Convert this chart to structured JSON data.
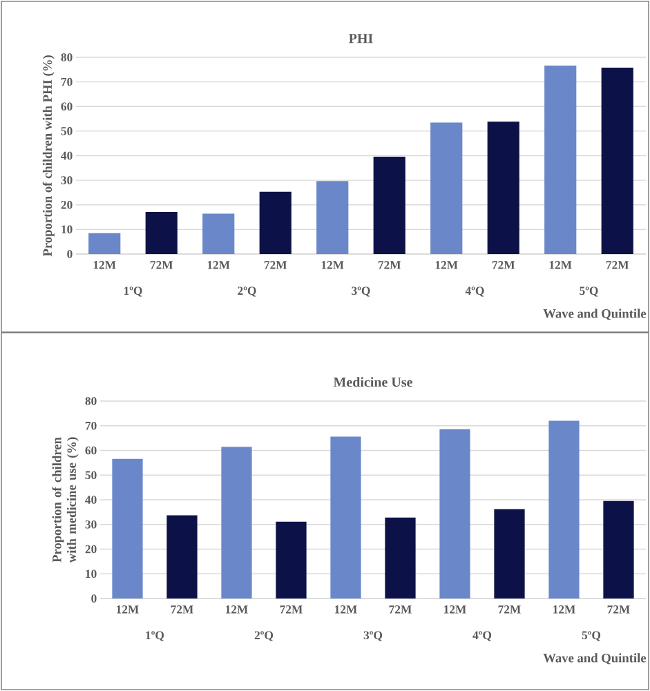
{
  "chart_data": [
    {
      "type": "bar",
      "title": "PHI",
      "xlabel": "Wave and Quintile",
      "ylabel": "Proportion of children with PHI (%)",
      "categories": [
        "12M",
        "72M",
        "12M",
        "72M",
        "12M",
        "72M",
        "12M",
        "72M",
        "12M",
        "72M"
      ],
      "values": [
        8.5,
        17.1,
        16.4,
        25.3,
        29.7,
        39.6,
        53.5,
        53.8,
        76.6,
        75.8
      ],
      "colors": [
        "#6a88c9",
        "#0c1247",
        "#6a88c9",
        "#0c1247",
        "#6a88c9",
        "#0c1247",
        "#6a88c9",
        "#0c1247",
        "#6a88c9",
        "#0c1247"
      ],
      "ylim": [
        0,
        80
      ],
      "yticks": [
        0,
        10,
        20,
        30,
        40,
        50,
        60,
        70,
        80
      ],
      "grid": "y",
      "annotations": [
        "1ºQ",
        "2ºQ",
        "3ºQ",
        "4ºQ",
        "5ºQ"
      ]
    },
    {
      "type": "bar",
      "title": "Medicine Use",
      "xlabel": "Wave and Quintile",
      "ylabel": "Proportion of children with medicine use (%)",
      "categories": [
        "12M",
        "72M",
        "12M",
        "72M",
        "12M",
        "72M",
        "12M",
        "72M",
        "12M",
        "72M"
      ],
      "values": [
        56.6,
        33.7,
        61.5,
        31.1,
        65.6,
        32.8,
        68.6,
        36.2,
        72.0,
        39.5
      ],
      "colors": [
        "#6a88c9",
        "#0c1247",
        "#6a88c9",
        "#0c1247",
        "#6a88c9",
        "#0c1247",
        "#6a88c9",
        "#0c1247",
        "#6a88c9",
        "#0c1247"
      ],
      "ylim": [
        0,
        80
      ],
      "yticks": [
        0,
        10,
        20,
        30,
        40,
        50,
        60,
        70,
        80
      ],
      "grid": "y",
      "annotations": [
        "1ºQ",
        "2ºQ",
        "3ºQ",
        "4ºQ",
        "5ºQ"
      ]
    }
  ]
}
